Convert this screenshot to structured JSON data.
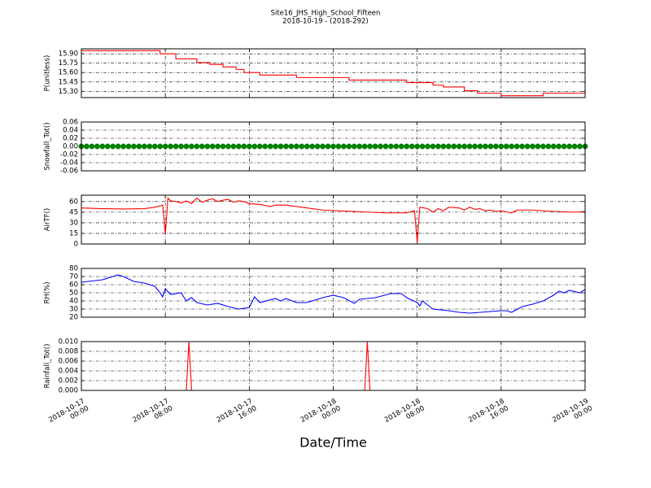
{
  "title": "Site16_JHS_High_School_Fifteen",
  "subtitle": "2018-10-19 - (2018-292)",
  "chart_data": [
    {
      "type": "line",
      "ylabel": "P(unitless)",
      "grid": true,
      "xlim": [
        "2018-10-17 00:00",
        "2018-10-19 00:00"
      ],
      "xticks": [
        "2018-10-17 00:00",
        "2018-10-17 08:00",
        "2018-10-17 16:00",
        "2018-10-18 00:00",
        "2018-10-18 08:00",
        "2018-10-18 16:00",
        "2018-10-19 00:00"
      ],
      "ylim": [
        15.2,
        15.98
      ],
      "yticks": [
        {
          "value": 15.3,
          "label": "15.30"
        },
        {
          "value": 15.45,
          "label": "15.45"
        },
        {
          "value": 15.6,
          "label": "15.60"
        },
        {
          "value": 15.75,
          "label": "15.75"
        },
        {
          "value": 15.9,
          "label": "15.90"
        }
      ],
      "series": [
        {
          "color": "#ff0000",
          "x": [
            "2018-10-17 00:00",
            "2018-10-17 07:30",
            "2018-10-17 07:30",
            "2018-10-17 09:00",
            "2018-10-17 09:00",
            "2018-10-17 11:00",
            "2018-10-17 11:00",
            "2018-10-17 12:15",
            "2018-10-17 12:15",
            "2018-10-17 13:30",
            "2018-10-17 13:30",
            "2018-10-17 14:45",
            "2018-10-17 14:45",
            "2018-10-17 15:30",
            "2018-10-17 15:30",
            "2018-10-17 17:00",
            "2018-10-17 17:00",
            "2018-10-17 20:30",
            "2018-10-17 20:30",
            "2018-10-18 01:30",
            "2018-10-18 01:30",
            "2018-10-18 07:00",
            "2018-10-18 07:00",
            "2018-10-18 09:30",
            "2018-10-18 09:30",
            "2018-10-18 10:30",
            "2018-10-18 10:30",
            "2018-10-18 12:30",
            "2018-10-18 12:30",
            "2018-10-18 13:45",
            "2018-10-18 13:45",
            "2018-10-18 16:00",
            "2018-10-18 16:00",
            "2018-10-18 20:00",
            "2018-10-18 20:00",
            "2018-10-19 00:00"
          ],
          "values": [
            15.95,
            15.95,
            15.9,
            15.9,
            15.82,
            15.82,
            15.76,
            15.76,
            15.73,
            15.73,
            15.69,
            15.69,
            15.65,
            15.65,
            15.6,
            15.6,
            15.56,
            15.56,
            15.52,
            15.52,
            15.48,
            15.48,
            15.44,
            15.44,
            15.4,
            15.4,
            15.37,
            15.37,
            15.31,
            15.31,
            15.27,
            15.27,
            15.23,
            15.23,
            15.27,
            15.27
          ]
        }
      ]
    },
    {
      "type": "scatter",
      "ylabel": "Snowfall_Tot()",
      "grid": true,
      "xlim": [
        "2018-10-17 00:00",
        "2018-10-19 00:00"
      ],
      "xticks": [
        "2018-10-17 00:00",
        "2018-10-17 08:00",
        "2018-10-17 16:00",
        "2018-10-18 00:00",
        "2018-10-18 08:00",
        "2018-10-18 16:00",
        "2018-10-19 00:00"
      ],
      "ylim": [
        -0.06,
        0.06
      ],
      "yticks": [
        -0.06,
        -0.04,
        -0.02,
        {
          "value": 0,
          "label": "0.00"
        },
        0.02,
        0.04,
        0.06
      ],
      "series": [
        {
          "color": "#008000",
          "x": [
            "2018-10-17 00:00",
            "2018-10-17 00:30",
            "2018-10-17 01:00",
            "2018-10-17 01:30",
            "2018-10-17 02:00",
            "2018-10-17 02:30",
            "2018-10-17 03:00",
            "2018-10-17 03:30",
            "2018-10-17 04:00",
            "2018-10-17 04:30",
            "2018-10-17 05:00",
            "2018-10-17 05:30",
            "2018-10-17 06:00",
            "2018-10-17 06:30",
            "2018-10-17 07:00",
            "2018-10-17 07:30",
            "2018-10-17 08:00",
            "2018-10-17 08:30",
            "2018-10-17 09:00",
            "2018-10-17 09:30",
            "2018-10-17 10:00",
            "2018-10-17 10:30",
            "2018-10-17 11:00",
            "2018-10-17 11:30",
            "2018-10-17 12:00",
            "2018-10-17 12:30",
            "2018-10-17 13:00",
            "2018-10-17 13:30",
            "2018-10-17 14:00",
            "2018-10-17 14:30",
            "2018-10-17 15:00",
            "2018-10-17 15:30",
            "2018-10-17 16:00",
            "2018-10-17 16:30",
            "2018-10-17 17:00",
            "2018-10-17 17:30",
            "2018-10-17 18:00",
            "2018-10-17 18:30",
            "2018-10-17 19:00",
            "2018-10-17 19:30",
            "2018-10-17 20:00",
            "2018-10-17 20:30",
            "2018-10-17 21:00",
            "2018-10-17 21:30",
            "2018-10-17 22:00",
            "2018-10-17 22:30",
            "2018-10-17 23:00",
            "2018-10-17 23:30",
            "2018-10-18 00:00",
            "2018-10-18 00:30",
            "2018-10-18 01:00",
            "2018-10-18 01:30",
            "2018-10-18 02:00",
            "2018-10-18 02:30",
            "2018-10-18 03:00",
            "2018-10-18 03:30",
            "2018-10-18 04:00",
            "2018-10-18 04:30",
            "2018-10-18 05:00",
            "2018-10-18 05:30",
            "2018-10-18 06:00",
            "2018-10-18 06:30",
            "2018-10-18 07:00",
            "2018-10-18 07:30",
            "2018-10-18 08:00",
            "2018-10-18 08:30",
            "2018-10-18 09:00",
            "2018-10-18 09:30",
            "2018-10-18 10:00",
            "2018-10-18 10:30",
            "2018-10-18 11:00",
            "2018-10-18 11:30",
            "2018-10-18 12:00",
            "2018-10-18 12:30",
            "2018-10-18 13:00",
            "2018-10-18 13:30",
            "2018-10-18 14:00",
            "2018-10-18 14:30",
            "2018-10-18 15:00",
            "2018-10-18 15:30",
            "2018-10-18 16:00",
            "2018-10-18 16:30",
            "2018-10-18 17:00",
            "2018-10-18 17:30",
            "2018-10-18 18:00",
            "2018-10-18 18:30",
            "2018-10-18 19:00",
            "2018-10-18 19:30",
            "2018-10-18 20:00",
            "2018-10-18 20:30",
            "2018-10-18 21:00",
            "2018-10-18 21:30",
            "2018-10-18 22:00",
            "2018-10-18 22:30",
            "2018-10-18 23:00",
            "2018-10-18 23:30",
            "2018-10-19 00:00"
          ],
          "values": [
            0,
            0,
            0,
            0,
            0,
            0,
            0,
            0,
            0,
            0,
            0,
            0,
            0,
            0,
            0,
            0,
            0,
            0,
            0,
            0,
            0,
            0,
            0,
            0,
            0,
            0,
            0,
            0,
            0,
            0,
            0,
            0,
            0,
            0,
            0,
            0,
            0,
            0,
            0,
            0,
            0,
            0,
            0,
            0,
            0,
            0,
            0,
            0,
            0,
            0,
            0,
            0,
            0,
            0,
            0,
            0,
            0,
            0,
            0,
            0,
            0,
            0,
            0,
            0,
            0,
            0,
            0,
            0,
            0,
            0,
            0,
            0,
            0,
            0,
            0,
            0,
            0,
            0,
            0,
            0,
            0,
            0,
            0,
            0,
            0,
            0,
            0,
            0,
            0,
            0,
            0,
            0,
            0,
            0,
            0,
            0,
            0
          ]
        }
      ]
    },
    {
      "type": "line",
      "ylabel": "AirTF()",
      "grid": true,
      "xlim": [
        "2018-10-17 00:00",
        "2018-10-19 00:00"
      ],
      "xticks": [
        "2018-10-17 00:00",
        "2018-10-17 08:00",
        "2018-10-17 16:00",
        "2018-10-18 00:00",
        "2018-10-18 08:00",
        "2018-10-18 16:00",
        "2018-10-19 00:00"
      ],
      "ylim": [
        0,
        69
      ],
      "yticks": [
        0,
        15,
        30,
        45,
        60
      ],
      "series": [
        {
          "color": "#ff0000",
          "x": [
            "2018-10-17 00:00",
            "2018-10-17 02:00",
            "2018-10-17 04:00",
            "2018-10-17 06:00",
            "2018-10-17 07:00",
            "2018-10-17 07:30",
            "2018-10-17 07:45",
            "2018-10-17 08:00",
            "2018-10-17 08:15",
            "2018-10-17 08:30",
            "2018-10-17 09:00",
            "2018-10-17 09:30",
            "2018-10-17 10:00",
            "2018-10-17 10:30",
            "2018-10-17 11:00",
            "2018-10-17 11:30",
            "2018-10-17 12:00",
            "2018-10-17 12:30",
            "2018-10-17 13:00",
            "2018-10-17 13:30",
            "2018-10-17 14:00",
            "2018-10-17 14:30",
            "2018-10-17 15:00",
            "2018-10-17 15:30",
            "2018-10-17 16:00",
            "2018-10-17 17:00",
            "2018-10-17 18:00",
            "2018-10-17 18:30",
            "2018-10-17 19:30",
            "2018-10-17 21:00",
            "2018-10-17 23:00",
            "2018-10-18 02:00",
            "2018-10-18 05:00",
            "2018-10-18 07:00",
            "2018-10-18 07:45",
            "2018-10-18 08:00",
            "2018-10-18 08:15",
            "2018-10-18 09:00",
            "2018-10-18 09:30",
            "2018-10-18 10:00",
            "2018-10-18 10:30",
            "2018-10-18 11:00",
            "2018-10-18 12:00",
            "2018-10-18 12:30",
            "2018-10-18 13:00",
            "2018-10-18 13:30",
            "2018-10-18 14:00",
            "2018-10-18 14:30",
            "2018-10-18 15:00",
            "2018-10-18 15:30",
            "2018-10-18 16:00",
            "2018-10-18 17:00",
            "2018-10-18 17:30",
            "2018-10-18 19:00",
            "2018-10-18 21:00",
            "2018-10-18 23:00",
            "2018-10-19 00:00"
          ],
          "values": [
            51,
            50,
            49.5,
            50,
            52,
            54,
            55,
            14,
            65,
            61,
            60,
            58,
            61,
            57,
            65,
            59,
            62,
            64,
            60,
            62,
            63,
            59,
            61,
            60,
            57,
            56,
            53,
            55,
            55,
            52,
            48,
            46,
            44,
            44,
            47,
            2,
            52,
            50,
            45,
            50,
            47,
            52,
            51,
            48,
            52,
            49,
            50,
            47,
            48,
            46,
            47,
            44,
            48,
            48,
            46,
            45,
            46
          ]
        }
      ]
    },
    {
      "type": "line",
      "ylabel": "RH(%)",
      "grid": true,
      "xlim": [
        "2018-10-17 00:00",
        "2018-10-19 00:00"
      ],
      "xticks": [
        "2018-10-17 00:00",
        "2018-10-17 08:00",
        "2018-10-17 16:00",
        "2018-10-18 00:00",
        "2018-10-18 08:00",
        "2018-10-18 16:00",
        "2018-10-19 00:00"
      ],
      "ylim": [
        20,
        80
      ],
      "yticks": [
        20,
        30,
        40,
        50,
        60,
        70,
        80
      ],
      "series": [
        {
          "color": "#0000ff",
          "x": [
            "2018-10-17 00:00",
            "2018-10-17 02:00",
            "2018-10-17 03:00",
            "2018-10-17 03:30",
            "2018-10-17 04:00",
            "2018-10-17 05:00",
            "2018-10-17 06:00",
            "2018-10-17 07:00",
            "2018-10-17 07:30",
            "2018-10-17 07:45",
            "2018-10-17 08:00",
            "2018-10-17 08:30",
            "2018-10-17 09:30",
            "2018-10-17 10:00",
            "2018-10-17 10:30",
            "2018-10-17 11:00",
            "2018-10-17 12:00",
            "2018-10-17 13:00",
            "2018-10-17 14:00",
            "2018-10-17 15:00",
            "2018-10-17 16:00",
            "2018-10-17 16:30",
            "2018-10-17 17:00",
            "2018-10-17 18:30",
            "2018-10-17 19:00",
            "2018-10-17 19:30",
            "2018-10-17 20:30",
            "2018-10-17 21:30",
            "2018-10-17 23:00",
            "2018-10-18 00:00",
            "2018-10-18 01:00",
            "2018-10-18 02:00",
            "2018-10-18 02:30",
            "2018-10-18 04:00",
            "2018-10-18 05:30",
            "2018-10-18 06:30",
            "2018-10-18 07:00",
            "2018-10-18 07:30",
            "2018-10-18 08:00",
            "2018-10-18 08:15",
            "2018-10-18 08:30",
            "2018-10-18 09:00",
            "2018-10-18 09:30",
            "2018-10-18 11:00",
            "2018-10-18 12:00",
            "2018-10-18 13:00",
            "2018-10-18 14:00",
            "2018-10-18 16:00",
            "2018-10-18 16:30",
            "2018-10-18 17:00",
            "2018-10-18 18:00",
            "2018-10-18 19:00",
            "2018-10-18 20:00",
            "2018-10-18 21:00",
            "2018-10-18 21:30",
            "2018-10-18 22:00",
            "2018-10-18 22:30",
            "2018-10-18 23:30",
            "2018-10-19 00:00"
          ],
          "values": [
            63,
            66,
            70,
            72,
            70,
            64,
            62,
            58,
            50,
            45,
            55,
            48,
            50,
            40,
            44,
            38,
            35,
            37,
            33,
            30,
            32,
            45,
            38,
            43,
            40,
            43,
            38,
            38,
            44,
            47,
            44,
            37,
            42,
            44,
            49,
            49,
            44,
            41,
            38,
            34,
            40,
            35,
            30,
            28,
            26,
            25,
            26,
            28,
            28,
            26,
            33,
            36,
            40,
            47,
            52,
            50,
            53,
            50,
            54
          ]
        }
      ]
    },
    {
      "type": "line",
      "ylabel": "Rainfall_Tot()",
      "grid": true,
      "xlabel": "Date/Time",
      "xlim": [
        "2018-10-17 00:00",
        "2018-10-19 00:00"
      ],
      "xticks": [
        {
          "value": "2018-10-17 00:00",
          "label": [
            "2018-10-17",
            "00:00"
          ]
        },
        {
          "value": "2018-10-17 08:00",
          "label": [
            "2018-10-17",
            "08:00"
          ]
        },
        {
          "value": "2018-10-17 16:00",
          "label": [
            "2018-10-17",
            "16:00"
          ]
        },
        {
          "value": "2018-10-18 00:00",
          "label": [
            "2018-10-18",
            "00:00"
          ]
        },
        {
          "value": "2018-10-18 08:00",
          "label": [
            "2018-10-18",
            "08:00"
          ]
        },
        {
          "value": "2018-10-18 16:00",
          "label": [
            "2018-10-18",
            "16:00"
          ]
        },
        {
          "value": "2018-10-19 00:00",
          "label": [
            "2018-10-19",
            "00:00"
          ]
        }
      ],
      "ylim": [
        0,
        0.01
      ],
      "yticks": [
        {
          "value": 0,
          "label": "0.000"
        },
        0.002,
        0.004,
        0.006,
        0.008,
        {
          "value": 0.01,
          "label": "0.010"
        }
      ],
      "series": [
        {
          "color": "#ff0000",
          "x": [
            "2018-10-17 00:00",
            "2018-10-17 10:00",
            "2018-10-17 10:15",
            "2018-10-17 10:30",
            "2018-10-18 03:00",
            "2018-10-18 03:15",
            "2018-10-18 03:30",
            "2018-10-19 00:00"
          ],
          "values": [
            0,
            0,
            0.01,
            0,
            0,
            0.01,
            0,
            0
          ]
        }
      ]
    }
  ]
}
